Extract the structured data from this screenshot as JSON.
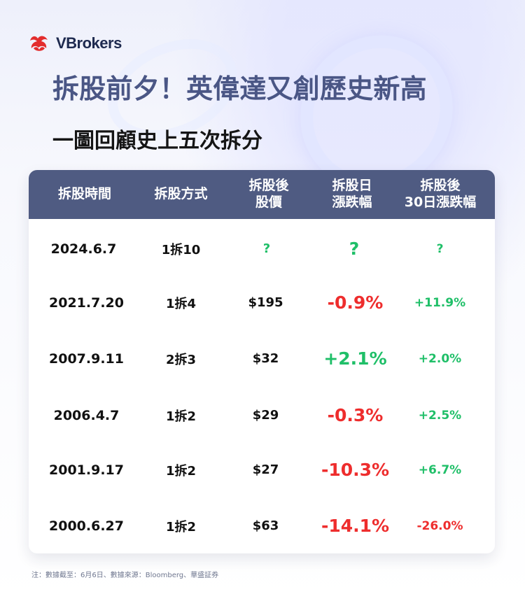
{
  "brand": {
    "name": "VBrokers",
    "accent": "#e32d2d"
  },
  "headline": {
    "title": "拆股前夕！英偉達又創歷史新高",
    "subtitle": "一圖回顧史上五次拆分"
  },
  "table": {
    "headers": [
      "拆股時間",
      "拆股方式",
      "拆股後\n股價",
      "拆股日\n漲跌幅",
      "拆股後\n30日漲跌幅"
    ],
    "rows": [
      {
        "date": "2024.6.7",
        "method": "1拆10",
        "price": "?",
        "day_change": "?",
        "thirty_change": "?",
        "day_color": "#1fbf68",
        "thirty_color": "#1fbf68",
        "price_color": "#1fbf68"
      },
      {
        "date": "2021.7.20",
        "method": "1拆4",
        "price": "$195",
        "day_change": "-0.9%",
        "thirty_change": "+11.9%",
        "day_color": "#ee2d2d",
        "thirty_color": "#1fbf68",
        "price_color": "#111111"
      },
      {
        "date": "2007.9.11",
        "method": "2拆3",
        "price": "$32",
        "day_change": "+2.1%",
        "thirty_change": "+2.0%",
        "day_color": "#1fbf68",
        "thirty_color": "#1fbf68",
        "price_color": "#111111"
      },
      {
        "date": "2006.4.7",
        "method": "1拆2",
        "price": "$29",
        "day_change": "-0.3%",
        "thirty_change": "+2.5%",
        "day_color": "#ee2d2d",
        "thirty_color": "#1fbf68",
        "price_color": "#111111"
      },
      {
        "date": "2001.9.17",
        "method": "1拆2",
        "price": "$27",
        "day_change": "-10.3%",
        "thirty_change": "+6.7%",
        "day_color": "#ee2d2d",
        "thirty_color": "#1fbf68",
        "price_color": "#111111"
      },
      {
        "date": "2000.6.27",
        "method": "1拆2",
        "price": "$63",
        "day_change": "-14.1%",
        "thirty_change": "-26.0%",
        "day_color": "#ee2d2d",
        "thirty_color": "#ee2d2d",
        "price_color": "#111111"
      }
    ]
  },
  "footnote": "注：數據截至：6月6日、數據來源：Bloomberg、華盛証券"
}
